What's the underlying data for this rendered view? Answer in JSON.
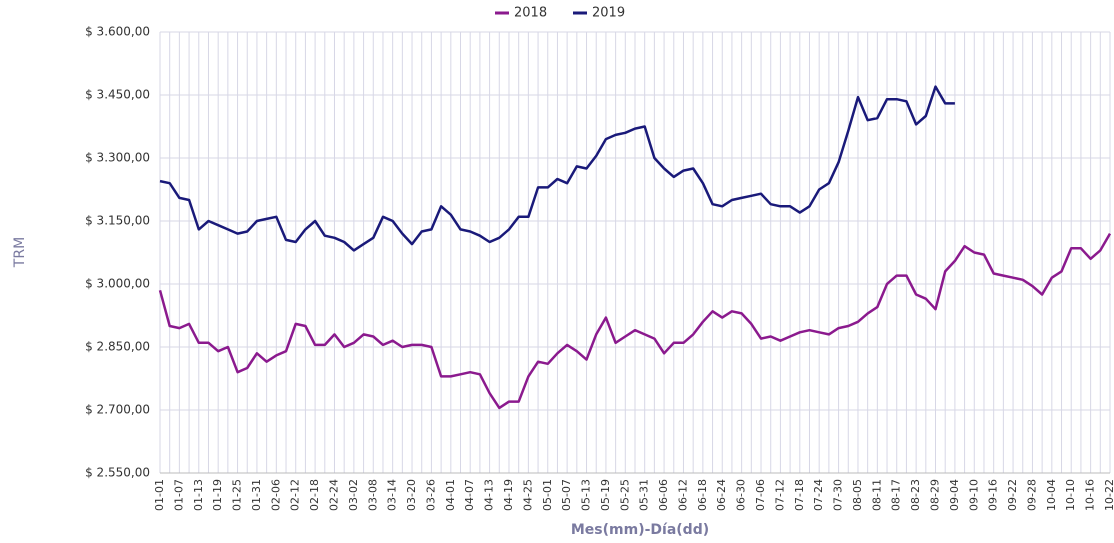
{
  "chart_data": {
    "type": "line",
    "xlabel": "Mes(mm)-Día(dd)",
    "ylabel": "TRM",
    "legend": "top",
    "grid": true,
    "categories": [
      "01-01",
      null,
      "01-07",
      null,
      "01-13",
      null,
      "01-19",
      null,
      "01-25",
      null,
      "01-31",
      null,
      "02-06",
      null,
      "02-12",
      null,
      "02-18",
      null,
      "02-24",
      null,
      "03-02",
      null,
      "03-08",
      null,
      "03-14",
      null,
      "03-20",
      null,
      "03-26",
      null,
      "04-01",
      null,
      "04-07",
      null,
      "04-13",
      null,
      "04-19",
      null,
      "04-25",
      null,
      "05-01",
      null,
      "05-07",
      null,
      "05-13",
      null,
      "05-19",
      null,
      "05-25",
      null,
      "05-31",
      null,
      "06-06",
      null,
      "06-12",
      null,
      "06-18",
      null,
      "06-24",
      null,
      "06-30",
      null,
      "07-06",
      null,
      "07-12",
      null,
      "07-18",
      null,
      "07-24",
      null,
      "07-30",
      null,
      "08-05",
      null,
      "08-11",
      null,
      "08-17",
      null,
      "08-23",
      null,
      "08-29",
      null,
      "09-04",
      null,
      "09-10",
      null,
      "09-16",
      null,
      "09-22",
      null,
      "09-28",
      null,
      "10-04",
      null,
      "10-10",
      null,
      "10-16",
      null,
      "10-22"
    ],
    "series": [
      {
        "name": "2018",
        "color": "#8b1a8e",
        "values": [
          2985,
          2900,
          2895,
          2905,
          2860,
          2860,
          2840,
          2850,
          2790,
          2800,
          2835,
          2815,
          2830,
          2840,
          2905,
          2900,
          2855,
          2855,
          2880,
          2850,
          2860,
          2880,
          2875,
          2855,
          2865,
          2850,
          2855,
          2855,
          2850,
          2780,
          2780,
          2785,
          2790,
          2785,
          2740,
          2705,
          2720,
          2720,
          2780,
          2815,
          2810,
          2835,
          2855,
          2840,
          2820,
          2880,
          2920,
          2860,
          2875,
          2890,
          2880,
          2870,
          2835,
          2860,
          2860,
          2880,
          2910,
          2935,
          2920,
          2935,
          2930,
          2905,
          2870,
          2875,
          2865,
          2875,
          2885,
          2890,
          2885,
          2880,
          2895,
          2900,
          2910,
          2930,
          2945,
          3000,
          3020,
          3020,
          2975,
          2965,
          2940,
          3030,
          3055,
          3090,
          3075,
          3070,
          3025,
          3020,
          3015,
          3010,
          2995,
          2975,
          3015,
          3030,
          3085,
          3085,
          3060,
          3080,
          3120
        ]
      },
      {
        "name": "2019",
        "color": "#1a1a7a",
        "values": [
          3245,
          3240,
          3205,
          3200,
          3130,
          3150,
          3140,
          3130,
          3120,
          3125,
          3150,
          3155,
          3160,
          3105,
          3100,
          3130,
          3150,
          3115,
          3110,
          3100,
          3080,
          3095,
          3110,
          3160,
          3150,
          3120,
          3095,
          3125,
          3130,
          3185,
          3165,
          3130,
          3125,
          3115,
          3100,
          3110,
          3130,
          3160,
          3160,
          3230,
          3230,
          3250,
          3240,
          3280,
          3275,
          3305,
          3345,
          3355,
          3360,
          3370,
          3375,
          3300,
          3275,
          3255,
          3270,
          3275,
          3240,
          3190,
          3185,
          3200,
          3205,
          3210,
          3215,
          3190,
          3185,
          3185,
          3170,
          3185,
          3225,
          3240,
          3290,
          3365,
          3445,
          3390,
          3395,
          3440,
          3440,
          3435,
          3380,
          3400,
          3470,
          3430,
          3430,
          null,
          null,
          null,
          null,
          null,
          null,
          null,
          null,
          null,
          null,
          null,
          null,
          null,
          null,
          null,
          null
        ]
      }
    ],
    "ylim": [
      2550,
      3600
    ],
    "yticks": [
      {
        "value": 2550,
        "label": "$ 2.550,00"
      },
      {
        "value": 2700,
        "label": "$ 2.700,00"
      },
      {
        "value": 2850,
        "label": "$ 2.850,00"
      },
      {
        "value": 3000,
        "label": "$ 3.000,00"
      },
      {
        "value": 3150,
        "label": "$ 3.150,00"
      },
      {
        "value": 3300,
        "label": "$ 3.300,00"
      },
      {
        "value": 3450,
        "label": "$ 3.450,00"
      },
      {
        "value": 3600,
        "label": "$ 3.600,00"
      }
    ]
  }
}
